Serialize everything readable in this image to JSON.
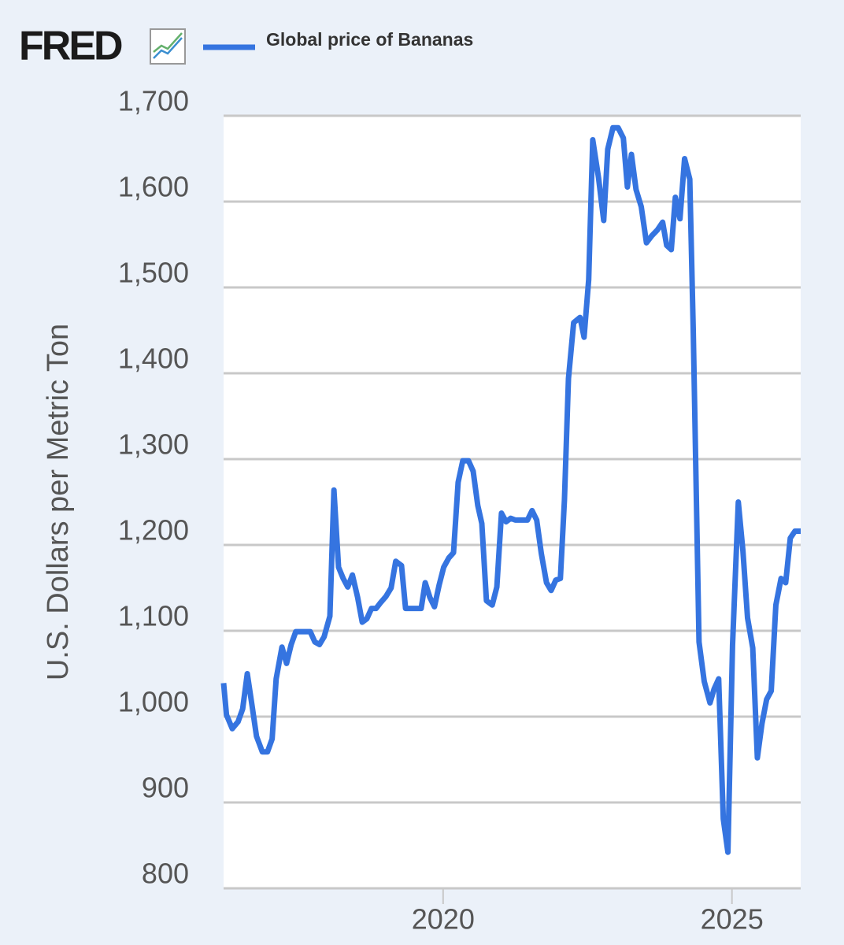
{
  "logo": "FRED",
  "chart_data": {
    "type": "line",
    "y_label": "U.S. Dollars per Metric Ton",
    "grid": true,
    "legend": "top-left",
    "xlim": [
      2016.2,
      2026.19
    ],
    "xticks": [
      2020,
      2025
    ],
    "ylim": [
      800,
      1700
    ],
    "yticks": [
      {
        "value": 1700,
        "label": "1,700"
      },
      {
        "value": 1600,
        "label": "1,600"
      },
      {
        "value": 1500,
        "label": "1,500"
      },
      {
        "value": 1400,
        "label": "1,400"
      },
      {
        "value": 1300,
        "label": "1,300"
      },
      {
        "value": 1200,
        "label": "1,200"
      },
      {
        "value": 1100,
        "label": "1,100"
      },
      {
        "value": 1000,
        "label": "1,000"
      },
      900,
      800
    ],
    "x": [
      2016.2,
      2016.25,
      2016.35,
      2016.45,
      2016.53,
      2016.61,
      2016.69,
      2016.77,
      2016.87,
      2016.96,
      2017.04,
      2017.11,
      2017.21,
      2017.29,
      2017.37,
      2017.45,
      2017.56,
      2017.7,
      2017.78,
      2017.86,
      2017.94,
      2018.04,
      2018.11,
      2018.19,
      2018.27,
      2018.35,
      2018.43,
      2018.52,
      2018.6,
      2018.68,
      2018.76,
      2018.84,
      2018.92,
      2019.01,
      2019.1,
      2019.18,
      2019.28,
      2019.35,
      2019.44,
      2019.62,
      2019.69,
      2019.77,
      2019.85,
      2019.93,
      2020.01,
      2020.1,
      2020.18,
      2020.26,
      2020.34,
      2020.44,
      2020.52,
      2020.6,
      2020.67,
      2020.75,
      2020.85,
      2020.93,
      2021.01,
      2021.09,
      2021.17,
      2021.25,
      2021.39,
      2021.46,
      2021.54,
      2021.62,
      2021.7,
      2021.79,
      2021.87,
      2021.95,
      2022.03,
      2022.1,
      2022.17,
      2022.26,
      2022.37,
      2022.44,
      2022.52,
      2022.59,
      2022.69,
      2022.78,
      2022.85,
      2022.94,
      2023.03,
      2023.12,
      2023.19,
      2023.26,
      2023.34,
      2023.43,
      2023.52,
      2023.61,
      2023.71,
      2023.8,
      2023.87,
      2023.95,
      2024.02,
      2024.1,
      2024.18,
      2024.27,
      2024.33,
      2024.43,
      2024.52,
      2024.62,
      2024.69,
      2024.77,
      2024.85,
      2024.93,
      2025.01,
      2025.11,
      2025.19,
      2025.27,
      2025.36,
      2025.44,
      2025.52,
      2025.6,
      2025.68,
      2025.76,
      2025.85,
      2025.93,
      2026.01,
      2026.09,
      2026.19
    ],
    "series": [
      {
        "name": "Global price of Bananas",
        "color": "#3574e0",
        "values": [
          1039,
          1002,
          986,
          994,
          1009,
          1050,
          1014,
          977,
          959,
          959,
          974,
          1044,
          1081,
          1062,
          1084,
          1099,
          1099,
          1099,
          1087,
          1084,
          1093,
          1117,
          1264,
          1174,
          1161,
          1151,
          1165,
          1139,
          1110,
          1114,
          1126,
          1126,
          1133,
          1140,
          1150,
          1181,
          1176,
          1126,
          1126,
          1126,
          1156,
          1139,
          1128,
          1153,
          1174,
          1185,
          1191,
          1273,
          1298,
          1298,
          1286,
          1246,
          1225,
          1135,
          1130,
          1151,
          1237,
          1227,
          1231,
          1229,
          1229,
          1229,
          1240,
          1229,
          1190,
          1156,
          1147,
          1159,
          1161,
          1252,
          1394,
          1459,
          1465,
          1442,
          1509,
          1672,
          1628,
          1578,
          1661,
          1686,
          1686,
          1674,
          1617,
          1655,
          1614,
          1594,
          1552,
          1560,
          1567,
          1576,
          1549,
          1544,
          1605,
          1580,
          1650,
          1626,
          1450,
          1087,
          1041,
          1016,
          1032,
          1044,
          881,
          842,
          1083,
          1250,
          1193,
          1115,
          1080,
          952,
          992,
          1020,
          1030,
          1130,
          1161,
          1156,
          1208,
          1216,
          1216
        ]
      }
    ]
  }
}
